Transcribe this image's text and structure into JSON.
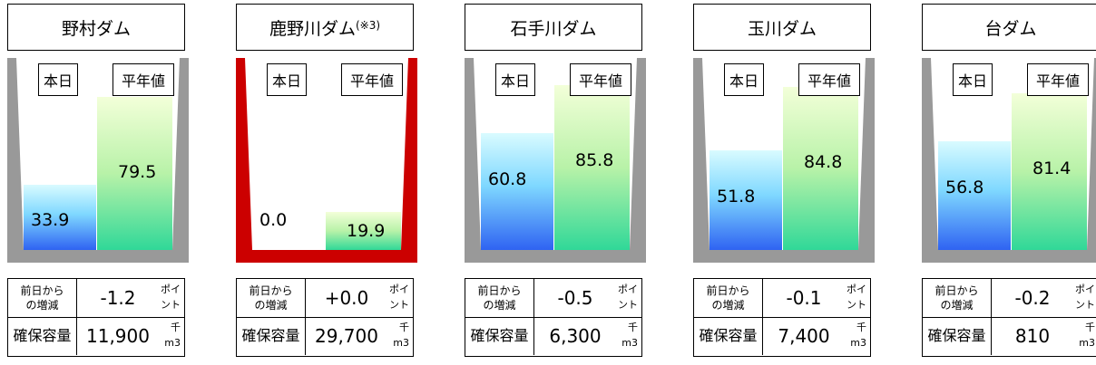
{
  "labels": {
    "today": "本日",
    "average": "平年値",
    "change_label_1": "前日から",
    "change_label_2": "の増減",
    "capacity_label": "確保容量",
    "point_unit_1": "ポイ",
    "point_unit_2": "ント",
    "cap_unit_1": "千",
    "cap_unit_2": "m3"
  },
  "colors": {
    "normal_frame": "#999999",
    "alert_frame": "#cc0000"
  },
  "dams": [
    {
      "name": "野村ダム",
      "note": "",
      "today": "33.9",
      "average": "79.5",
      "today_level": 33.9,
      "average_level": 79.5,
      "change": "-1.2",
      "capacity": "11,900",
      "alert": false
    },
    {
      "name": "鹿野川ダム",
      "note": "(※3)",
      "today": "0.0",
      "average": "19.9",
      "today_level": 0.0,
      "average_level": 19.9,
      "change": "+0.0",
      "capacity": "29,700",
      "alert": true
    },
    {
      "name": "石手川ダム",
      "note": "",
      "today": "60.8",
      "average": "85.8",
      "today_level": 60.8,
      "average_level": 85.8,
      "change": "-0.5",
      "capacity": "6,300",
      "alert": false
    },
    {
      "name": "玉川ダム",
      "note": "",
      "today": "51.8",
      "average": "84.8",
      "today_level": 51.8,
      "average_level": 84.8,
      "change": "-0.1",
      "capacity": "7,400",
      "alert": false
    },
    {
      "name": "台ダム",
      "note": "",
      "today": "56.8",
      "average": "81.4",
      "today_level": 56.8,
      "average_level": 81.4,
      "change": "-0.2",
      "capacity": "810",
      "alert": false
    }
  ]
}
